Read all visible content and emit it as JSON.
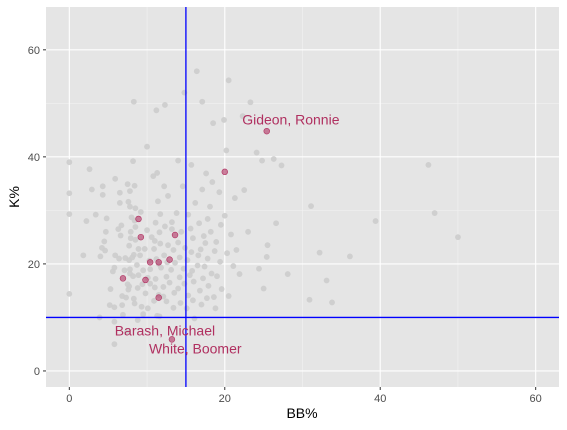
{
  "chart_data": {
    "type": "scatter",
    "xlabel": "BB%",
    "ylabel": "K%",
    "xlim": [
      -3,
      63
    ],
    "ylim": [
      -3,
      68
    ],
    "x_ticks": [
      0,
      20,
      40,
      60
    ],
    "y_ticks": [
      0,
      20,
      40,
      60
    ],
    "x_tick_labels": [
      "0",
      "20",
      "40",
      "60"
    ],
    "y_tick_labels": [
      "0",
      "20",
      "40",
      "60"
    ],
    "grid": true,
    "panel_color": "#e5e5e5",
    "reference_lines": {
      "vertical_x": 15,
      "horizontal_y": 10,
      "color": "#0000ff"
    },
    "colors": {
      "background": "#cccccc",
      "highlight": "#b03060"
    },
    "background_points": [
      [
        0.0,
        39.0
      ],
      [
        0.0,
        33.2
      ],
      [
        0.0,
        29.3
      ],
      [
        0.0,
        14.4
      ],
      [
        1.8,
        21.6
      ],
      [
        2.2,
        28.0
      ],
      [
        2.6,
        37.7
      ],
      [
        2.9,
        33.9
      ],
      [
        3.4,
        29.2
      ],
      [
        3.9,
        10.0
      ],
      [
        4.0,
        21.4
      ],
      [
        4.2,
        23.0
      ],
      [
        4.3,
        32.9
      ],
      [
        4.3,
        34.5
      ],
      [
        4.5,
        24.2
      ],
      [
        4.6,
        22.5
      ],
      [
        4.7,
        26.0
      ],
      [
        4.8,
        28.5
      ],
      [
        5.2,
        12.3
      ],
      [
        5.3,
        15.3
      ],
      [
        5.6,
        18.6
      ],
      [
        5.8,
        11.9
      ],
      [
        5.8,
        5.0
      ],
      [
        5.8,
        9.2
      ],
      [
        5.8,
        19.3
      ],
      [
        5.9,
        21.6
      ],
      [
        5.9,
        35.9
      ],
      [
        6.3,
        26.5
      ],
      [
        6.4,
        21.0
      ],
      [
        6.5,
        31.4
      ],
      [
        6.5,
        33.3
      ],
      [
        6.6,
        25.3
      ],
      [
        6.7,
        27.2
      ],
      [
        6.8,
        12.3
      ],
      [
        6.8,
        14.0
      ],
      [
        6.9,
        10.5
      ],
      [
        7.1,
        18.8
      ],
      [
        7.2,
        21.1
      ],
      [
        7.3,
        13.7
      ],
      [
        7.4,
        7.3
      ],
      [
        7.5,
        16.2
      ],
      [
        7.5,
        34.9
      ],
      [
        7.6,
        15.2
      ],
      [
        7.6,
        31.6
      ],
      [
        7.7,
        15.8
      ],
      [
        7.7,
        20.7
      ],
      [
        7.7,
        23.4
      ],
      [
        7.8,
        18.2
      ],
      [
        7.8,
        19.0
      ],
      [
        7.8,
        30.7
      ],
      [
        7.8,
        33.6
      ],
      [
        7.9,
        24.8
      ],
      [
        7.9,
        26.0
      ],
      [
        8.0,
        28.7
      ],
      [
        8.1,
        21.2
      ],
      [
        8.2,
        17.7
      ],
      [
        8.2,
        39.2
      ],
      [
        8.3,
        50.3
      ],
      [
        8.3,
        13.5
      ],
      [
        8.3,
        21.7
      ],
      [
        8.4,
        12.6
      ],
      [
        8.4,
        28.1
      ],
      [
        8.4,
        34.6
      ],
      [
        8.5,
        24.5
      ],
      [
        8.5,
        26.9
      ],
      [
        8.5,
        30.4
      ],
      [
        8.7,
        19.8
      ],
      [
        8.8,
        9.5
      ],
      [
        8.8,
        15.5
      ],
      [
        8.9,
        17.9
      ],
      [
        8.9,
        22.8
      ],
      [
        9.1,
        21.6
      ],
      [
        9.2,
        29.7
      ],
      [
        9.3,
        12.0
      ],
      [
        9.4,
        16.2
      ],
      [
        9.5,
        10.6
      ],
      [
        9.5,
        18.8
      ],
      [
        9.7,
        22.8
      ],
      [
        9.8,
        14.5
      ],
      [
        10.0,
        26.3
      ],
      [
        10.0,
        41.9
      ],
      [
        10.1,
        11.7
      ],
      [
        10.1,
        17.4
      ],
      [
        10.3,
        20.6
      ],
      [
        10.4,
        16.3
      ],
      [
        10.4,
        19.0
      ],
      [
        10.6,
        25.0
      ],
      [
        10.8,
        36.4
      ],
      [
        10.9,
        13.1
      ],
      [
        10.9,
        22.8
      ],
      [
        11.0,
        15.6
      ],
      [
        11.0,
        24.3
      ],
      [
        11.1,
        17.2
      ],
      [
        11.1,
        27.7
      ],
      [
        11.2,
        20.9
      ],
      [
        11.2,
        48.7
      ],
      [
        11.3,
        10.3
      ],
      [
        11.3,
        37.0
      ],
      [
        11.4,
        31.7
      ],
      [
        11.5,
        14.2
      ],
      [
        11.5,
        20.0
      ],
      [
        11.6,
        10.2
      ],
      [
        11.6,
        25.9
      ],
      [
        11.7,
        23.8
      ],
      [
        11.7,
        29.3
      ],
      [
        11.8,
        19.3
      ],
      [
        12.1,
        13.9
      ],
      [
        12.1,
        15.7
      ],
      [
        12.2,
        21.6
      ],
      [
        12.2,
        34.5
      ],
      [
        12.3,
        27.0
      ],
      [
        12.3,
        49.7
      ],
      [
        12.5,
        13.0
      ],
      [
        12.5,
        17.6
      ],
      [
        12.6,
        20.3
      ],
      [
        12.7,
        23.5
      ],
      [
        12.7,
        32.7
      ],
      [
        12.9,
        16.5
      ],
      [
        13.1,
        18.9
      ],
      [
        13.2,
        26.5
      ],
      [
        13.2,
        27.8
      ],
      [
        13.4,
        11.8
      ],
      [
        13.4,
        22.6
      ],
      [
        13.5,
        14.6
      ],
      [
        13.6,
        20.2
      ],
      [
        13.8,
        29.5
      ],
      [
        14.0,
        15.4
      ],
      [
        14.0,
        24.0
      ],
      [
        14.0,
        39.3
      ],
      [
        14.2,
        17.5
      ],
      [
        14.2,
        21.2
      ],
      [
        14.3,
        12.7
      ],
      [
        14.4,
        26.0
      ],
      [
        14.6,
        34.5
      ],
      [
        14.7,
        19.1
      ],
      [
        14.8,
        16.3
      ],
      [
        14.8,
        52.0
      ],
      [
        14.9,
        23.0
      ],
      [
        15.1,
        11.7
      ],
      [
        15.2,
        20.7
      ],
      [
        15.3,
        14.1
      ],
      [
        15.3,
        29.2
      ],
      [
        15.5,
        17.9
      ],
      [
        15.6,
        26.6
      ],
      [
        15.7,
        22.2
      ],
      [
        15.7,
        38.5
      ],
      [
        15.8,
        18.7
      ],
      [
        15.9,
        13.2
      ],
      [
        15.9,
        24.8
      ],
      [
        16.0,
        16.7
      ],
      [
        16.1,
        9.8
      ],
      [
        16.2,
        31.4
      ],
      [
        16.4,
        56.0
      ],
      [
        16.5,
        19.7
      ],
      [
        16.6,
        21.6
      ],
      [
        16.7,
        27.6
      ],
      [
        16.8,
        15.0
      ],
      [
        16.9,
        22.7
      ],
      [
        17.0,
        12.4
      ],
      [
        17.1,
        33.9
      ],
      [
        17.1,
        50.3
      ],
      [
        17.2,
        17.3
      ],
      [
        17.3,
        25.2
      ],
      [
        17.4,
        19.5
      ],
      [
        17.5,
        23.9
      ],
      [
        17.6,
        36.9
      ],
      [
        17.7,
        13.6
      ],
      [
        17.8,
        21.0
      ],
      [
        17.8,
        28.4
      ],
      [
        17.9,
        15.9
      ],
      [
        18.1,
        30.7
      ],
      [
        18.2,
        26.0
      ],
      [
        18.3,
        18.2
      ],
      [
        18.4,
        35.3
      ],
      [
        18.5,
        46.3
      ],
      [
        18.6,
        13.8
      ],
      [
        18.7,
        22.4
      ],
      [
        18.8,
        11.7
      ],
      [
        18.9,
        24.1
      ],
      [
        19.0,
        17.7
      ],
      [
        19.3,
        33.4
      ],
      [
        19.4,
        20.4
      ],
      [
        19.5,
        27.3
      ],
      [
        19.6,
        15.3
      ],
      [
        19.9,
        46.9
      ],
      [
        20.0,
        29.0
      ],
      [
        20.2,
        41.2
      ],
      [
        20.3,
        22.0
      ],
      [
        20.5,
        14.0
      ],
      [
        20.5,
        54.3
      ],
      [
        20.8,
        25.5
      ],
      [
        21.1,
        19.6
      ],
      [
        21.3,
        32.3
      ],
      [
        21.5,
        22.6
      ],
      [
        21.9,
        18.1
      ],
      [
        22.3,
        47.6
      ],
      [
        22.5,
        33.8
      ],
      [
        23.0,
        26.0
      ],
      [
        23.3,
        50.2
      ],
      [
        24.1,
        40.8
      ],
      [
        24.4,
        19.1
      ],
      [
        24.8,
        39.3
      ],
      [
        25.0,
        15.4
      ],
      [
        25.4,
        21.3
      ],
      [
        25.5,
        23.5
      ],
      [
        26.3,
        39.6
      ],
      [
        26.6,
        27.6
      ],
      [
        27.3,
        38.4
      ],
      [
        28.1,
        18.1
      ],
      [
        30.9,
        13.3
      ],
      [
        31.1,
        30.8
      ],
      [
        32.2,
        22.1
      ],
      [
        33.1,
        16.9
      ],
      [
        33.8,
        12.8
      ],
      [
        36.1,
        21.4
      ],
      [
        39.4,
        28.0
      ],
      [
        46.2,
        38.5
      ],
      [
        47.0,
        29.5
      ],
      [
        50.0,
        25.0
      ]
    ],
    "highlight_points": [
      [
        6.9,
        17.3
      ],
      [
        8.9,
        28.4
      ],
      [
        9.2,
        25.0
      ],
      [
        9.8,
        17.0
      ],
      [
        10.4,
        20.3
      ],
      [
        11.5,
        13.7
      ],
      [
        11.5,
        20.3
      ],
      [
        12.9,
        20.8
      ],
      [
        13.2,
        5.9
      ],
      [
        13.6,
        25.4
      ],
      [
        20.0,
        37.2
      ],
      [
        25.4,
        44.8
      ]
    ],
    "annotations": [
      {
        "text": "Gideon, Ronnie",
        "x": 28.5,
        "y": 47.0
      },
      {
        "text": "Barash, Michael",
        "x": 12.3,
        "y": 7.6
      },
      {
        "text": "White, Boomer",
        "x": 16.2,
        "y": 4.2
      }
    ]
  }
}
